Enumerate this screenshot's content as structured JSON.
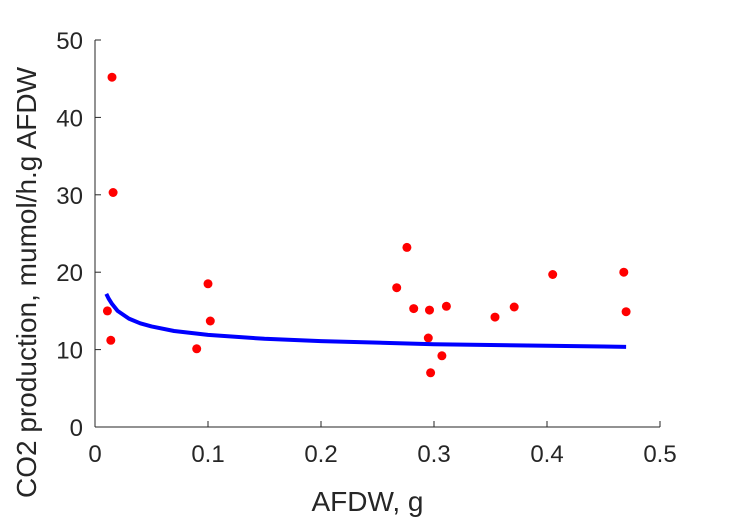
{
  "chart_data": {
    "type": "scatter",
    "xlabel": "AFDW, g",
    "ylabel": "CO2 production, mumol/h.g AFDW",
    "xlim": [
      0,
      0.5
    ],
    "ylim": [
      0,
      50
    ],
    "xticks": [
      0,
      0.1,
      0.2,
      0.3,
      0.4,
      0.5
    ],
    "xtick_labels": [
      "0",
      "0.1",
      "0.2",
      "0.3",
      "0.4",
      "0.5"
    ],
    "yticks": [
      0,
      10,
      20,
      30,
      40,
      50
    ],
    "ytick_labels": [
      "0",
      "10",
      "20",
      "30",
      "40",
      "50"
    ],
    "grid": false,
    "series": [
      {
        "kind": "scatter",
        "color": "#ff0000",
        "x": [
          0.011,
          0.014,
          0.015,
          0.016,
          0.09,
          0.1,
          0.102,
          0.267,
          0.276,
          0.282,
          0.295,
          0.296,
          0.297,
          0.307,
          0.311,
          0.354,
          0.371,
          0.405,
          0.468,
          0.47
        ],
        "y": [
          15.0,
          11.2,
          45.2,
          30.3,
          10.1,
          18.5,
          13.7,
          18.0,
          23.2,
          15.3,
          11.5,
          15.1,
          7.0,
          9.2,
          15.6,
          14.2,
          15.5,
          19.7,
          20.0,
          14.9
        ]
      },
      {
        "kind": "line",
        "color": "#0000ff",
        "x": [
          0.01,
          0.012,
          0.015,
          0.02,
          0.03,
          0.04,
          0.05,
          0.07,
          0.1,
          0.15,
          0.2,
          0.25,
          0.3,
          0.35,
          0.4,
          0.45,
          0.47
        ],
        "y": [
          17.2,
          16.6,
          15.9,
          15.0,
          14.0,
          13.4,
          13.0,
          12.4,
          11.9,
          11.4,
          11.1,
          10.9,
          10.7,
          10.6,
          10.5,
          10.4,
          10.35
        ]
      }
    ]
  }
}
